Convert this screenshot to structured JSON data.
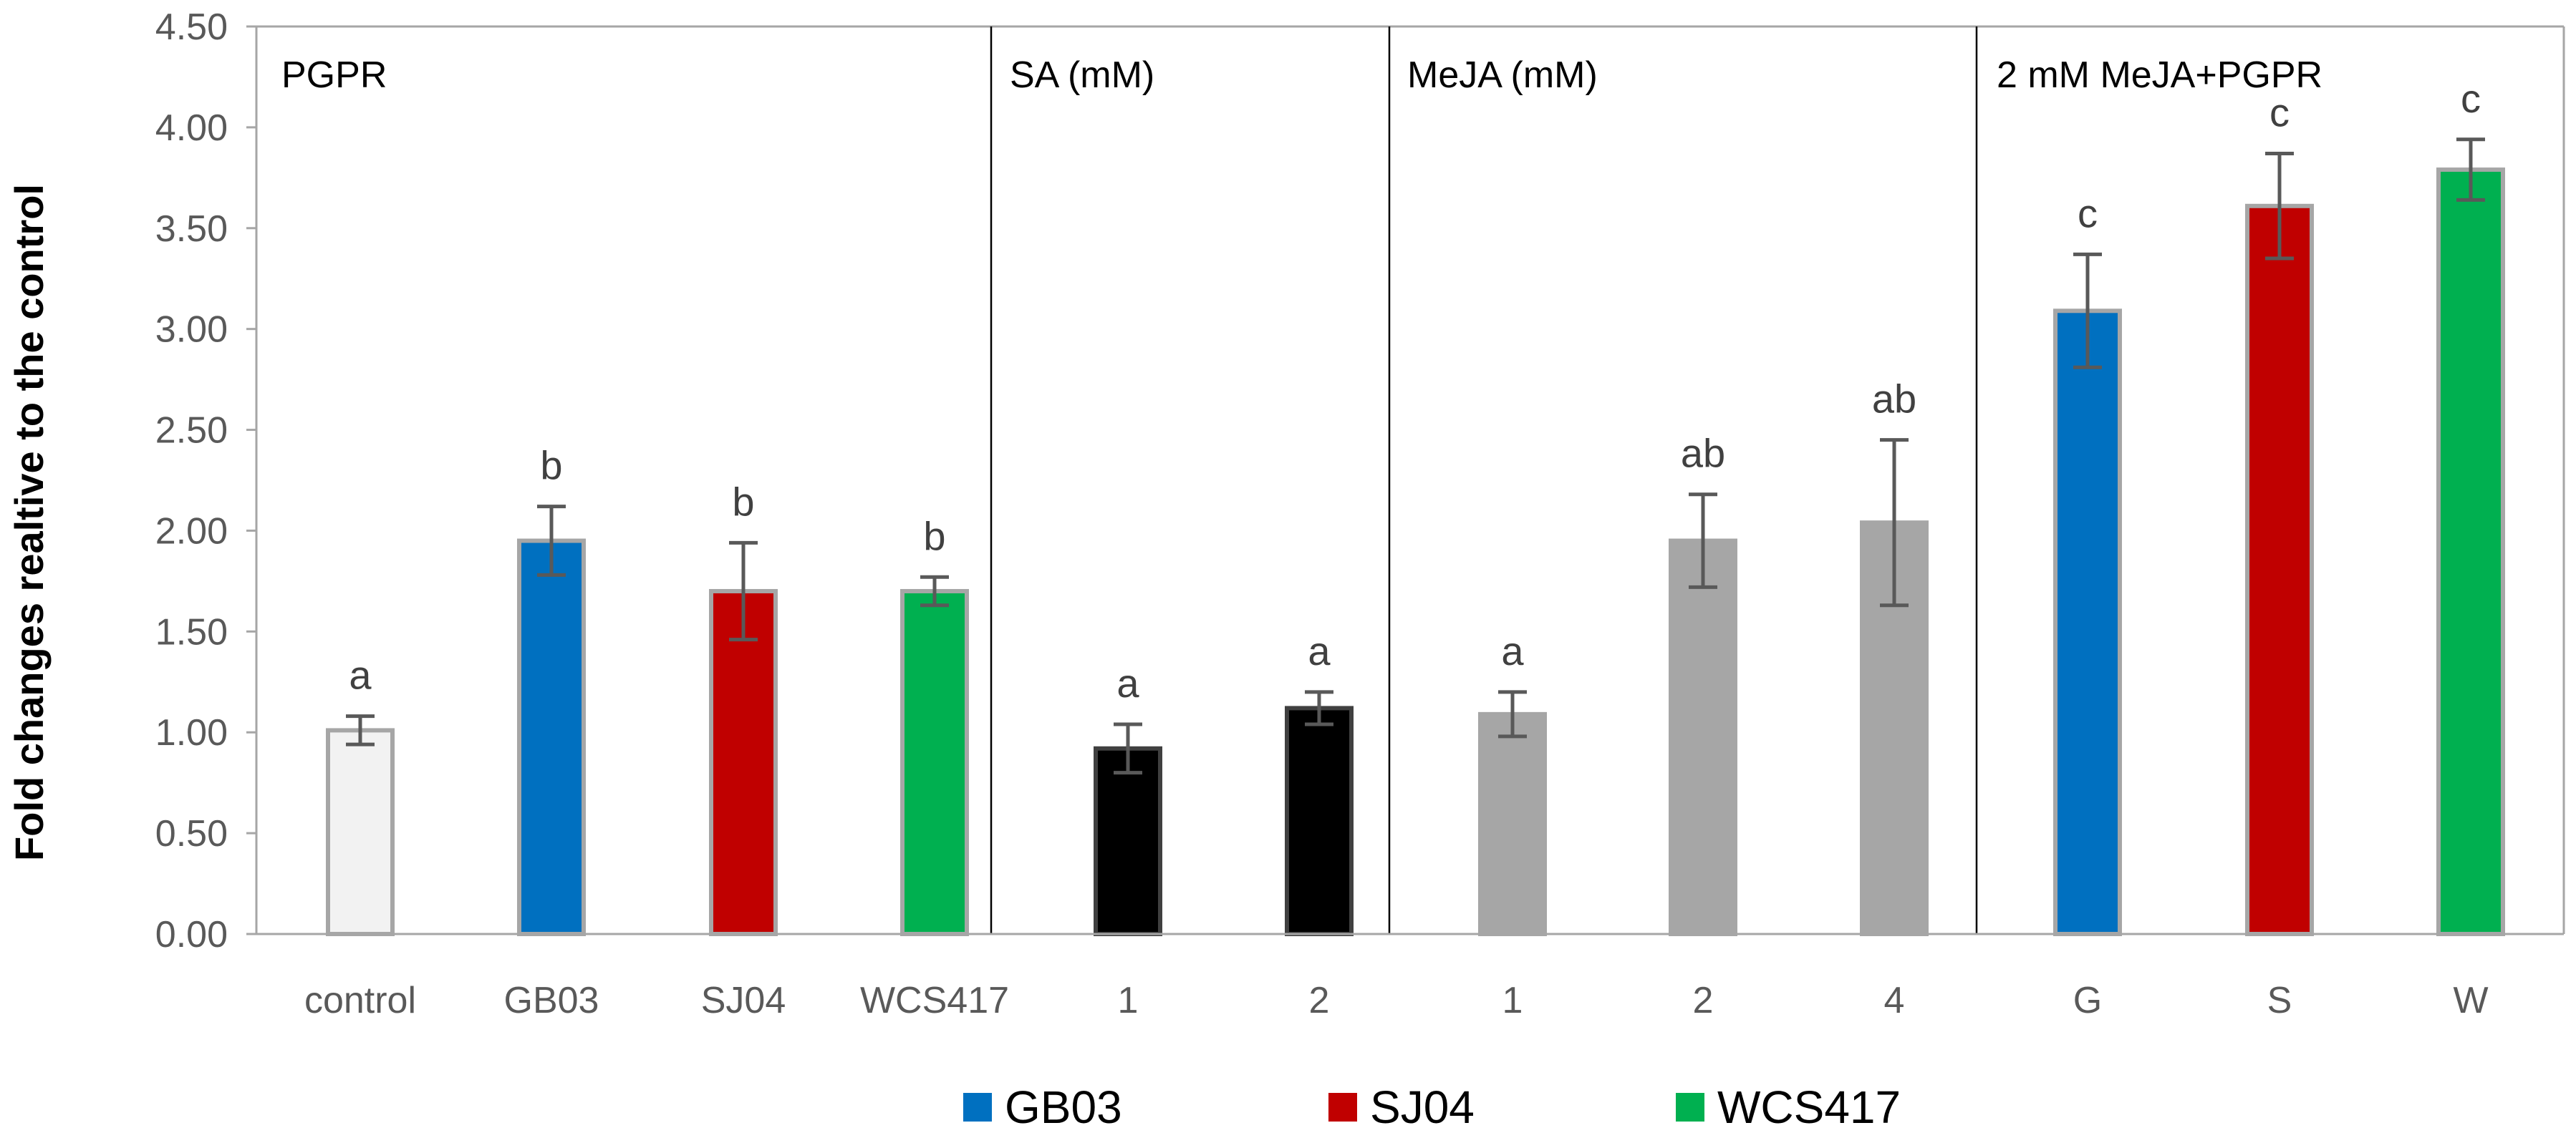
{
  "chart_data": {
    "type": "bar",
    "ylabel": "Fold changes realtive to the control",
    "ylim": [
      0,
      4.5
    ],
    "yticks": [
      "0.00",
      "0.50",
      "1.00",
      "1.50",
      "2.00",
      "2.50",
      "3.00",
      "3.50",
      "4.00",
      "4.50"
    ],
    "grid": false,
    "legend": {
      "position": "bottom",
      "entries": [
        {
          "name": "GB03",
          "color": "#0070C0"
        },
        {
          "name": "SJ04",
          "color": "#C00000"
        },
        {
          "name": "WCS417",
          "color": "#00B050"
        }
      ]
    },
    "panels": [
      {
        "label": "PGPR",
        "bars": [
          {
            "category": "control",
            "value": 1.01,
            "error": 0.07,
            "sig": "a",
            "color": "#F2F2F2"
          },
          {
            "category": "GB03",
            "value": 1.95,
            "error": 0.17,
            "sig": "b",
            "color": "#0070C0"
          },
          {
            "category": "SJ04",
            "value": 1.7,
            "error": 0.24,
            "sig": "b",
            "color": "#C00000"
          },
          {
            "category": "WCS417",
            "value": 1.7,
            "error": 0.07,
            "sig": "b",
            "color": "#00B050"
          }
        ]
      },
      {
        "label": "SA (mM)",
        "bars": [
          {
            "category": "1",
            "value": 0.92,
            "error": 0.12,
            "sig": "a",
            "color": "#000000"
          },
          {
            "category": "2",
            "value": 1.12,
            "error": 0.08,
            "sig": "a",
            "color": "#000000"
          }
        ]
      },
      {
        "label": "MeJA (mM)",
        "bars": [
          {
            "category": "1",
            "value": 1.09,
            "error": 0.11,
            "sig": "a",
            "color": "#A6A6A6"
          },
          {
            "category": "2",
            "value": 1.95,
            "error": 0.23,
            "sig": "ab",
            "color": "#A6A6A6"
          },
          {
            "category": "4",
            "value": 2.04,
            "error": 0.41,
            "sig": "ab",
            "color": "#A6A6A6"
          }
        ]
      },
      {
        "label": "2 mM MeJA+PGPR",
        "bars": [
          {
            "category": "G",
            "value": 3.09,
            "error": 0.28,
            "sig": "c",
            "color": "#0070C0"
          },
          {
            "category": "S",
            "value": 3.61,
            "error": 0.26,
            "sig": "c",
            "color": "#C00000"
          },
          {
            "category": "W",
            "value": 3.79,
            "error": 0.15,
            "sig": "c",
            "color": "#00B050"
          }
        ]
      }
    ]
  }
}
